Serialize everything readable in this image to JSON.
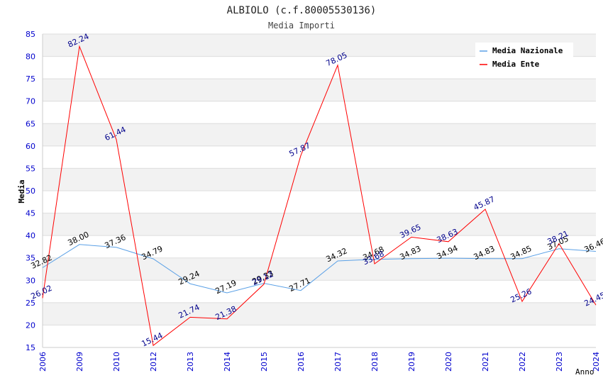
{
  "chart_data": {
    "type": "line",
    "title": "ALBIOLO (c.f.80005530136)",
    "subtitle": "Media Importi",
    "xlabel": "Anno",
    "ylabel": "Media",
    "ylim": [
      15,
      85
    ],
    "y_ticks": [
      15,
      20,
      25,
      30,
      35,
      40,
      45,
      50,
      55,
      60,
      65,
      70,
      75,
      80,
      85
    ],
    "categories": [
      "2006",
      "2009",
      "2010",
      "2012",
      "2013",
      "2014",
      "2015",
      "2016",
      "2017",
      "2018",
      "2019",
      "2020",
      "2021",
      "2022",
      "2023",
      "2024"
    ],
    "series": [
      {
        "name": "Media Nazionale",
        "color": "#5aa0e6",
        "label_color": "#000000",
        "values": [
          32.82,
          38.0,
          37.36,
          34.79,
          29.24,
          27.19,
          29.33,
          27.71,
          34.32,
          34.68,
          34.83,
          34.94,
          34.83,
          34.85,
          37.05,
          36.46
        ],
        "labels": [
          "32.82",
          "38.00",
          "37.36",
          "34.79",
          "29.24",
          "27.19",
          "29.33",
          "27.71",
          "34.32",
          "34.68",
          "34.83",
          "34.94",
          "34.83",
          "34.85",
          "37.05",
          "36.46"
        ]
      },
      {
        "name": "Media Ente",
        "color": "#ff0000",
        "label_color": "#00008b",
        "values": [
          26.02,
          82.24,
          61.44,
          15.44,
          21.74,
          21.38,
          29.12,
          57.87,
          78.05,
          33.68,
          39.65,
          38.63,
          45.87,
          25.26,
          38.21,
          24.45
        ],
        "labels": [
          "26.02",
          "82.24",
          "61.44",
          "15.44",
          "21.74",
          "21.38",
          "29.12",
          "57.87",
          "78.05",
          "33.68",
          "39.65",
          "38.63",
          "45.87",
          "25.26",
          "38.21",
          "24.45"
        ]
      }
    ],
    "grid": true,
    "legend_position": "top-right",
    "colors": {
      "band": "#f2f2f2",
      "gridline": "#dddddd",
      "axis_text": "#0000cd",
      "title": "#222222"
    }
  }
}
